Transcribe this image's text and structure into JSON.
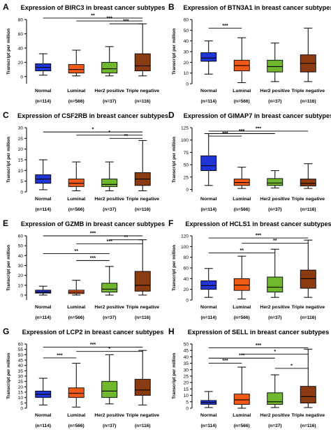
{
  "figure": {
    "y_axis_label": "Transcript per million",
    "groups": [
      "Normal",
      "Luminal",
      "Her2 positive",
      "Triple negative"
    ],
    "group_ns": [
      "(n=114)",
      "(n=566)",
      "(n=37)",
      "(n=116)"
    ],
    "colors": {
      "Normal": "#1f35d6",
      "Luminal": "#f05a16",
      "Her2 positive": "#6fb82e",
      "Triple negative": "#8b3a12"
    }
  },
  "chart_data": [
    {
      "panel": "A",
      "title": "Expression of BIRC3 in breast cancer subtypes",
      "type": "boxplot",
      "ylim": [
        -10,
        80
      ],
      "yticks": [
        0,
        20,
        40,
        60,
        80
      ],
      "boxes": [
        {
          "group": "Normal",
          "min": 2,
          "q1": 8,
          "median": 13,
          "q3": 18,
          "max": 32
        },
        {
          "group": "Luminal",
          "min": 1,
          "q1": 5,
          "median": 10,
          "q3": 17,
          "max": 37
        },
        {
          "group": "Her2 positive",
          "min": 1,
          "q1": 5,
          "median": 11,
          "q3": 20,
          "max": 42
        },
        {
          "group": "Triple negative",
          "min": 1,
          "q1": 8,
          "median": 15,
          "q3": 32,
          "max": 74
        }
      ],
      "significance": [
        {
          "from": "Normal",
          "to": "Triple negative",
          "label": "**",
          "y": 82
        },
        {
          "from": "Luminal",
          "to": "Triple negative",
          "label": "***",
          "y": 78
        },
        {
          "from": "Her2 positive",
          "to": "Triple negative",
          "label": "***",
          "y": 74
        }
      ]
    },
    {
      "panel": "B",
      "title": "Expression of BTN3A1 in breast cancer subtypes",
      "type": "boxplot",
      "ylim": [
        0,
        60
      ],
      "yticks": [
        0,
        10,
        20,
        30,
        40,
        50,
        60
      ],
      "boxes": [
        {
          "group": "Normal",
          "min": 9,
          "q1": 21,
          "median": 24,
          "q3": 29,
          "max": 40
        },
        {
          "group": "Luminal",
          "min": 1,
          "q1": 12,
          "median": 17,
          "q3": 22,
          "max": 43
        },
        {
          "group": "Her2 positive",
          "min": 2,
          "q1": 11,
          "median": 16,
          "q3": 22,
          "max": 38
        },
        {
          "group": "Triple negative",
          "min": 2,
          "q1": 11,
          "median": 19,
          "q3": 27,
          "max": 52
        }
      ],
      "significance": [
        {
          "from": "Normal",
          "to": "Luminal",
          "label": "***",
          "y": 52
        }
      ]
    },
    {
      "panel": "C",
      "title": "Expression of CSF2RB in breast cancer subtypes",
      "type": "boxplot",
      "ylim": [
        0,
        30
      ],
      "yticks": [
        0,
        5,
        10,
        15,
        20,
        25,
        30
      ],
      "boxes": [
        {
          "group": "Normal",
          "min": 1,
          "q1": 4,
          "median": 6,
          "q3": 8,
          "max": 15
        },
        {
          "group": "Luminal",
          "min": 0.5,
          "q1": 2.5,
          "median": 4,
          "q3": 6,
          "max": 14
        },
        {
          "group": "Her2 positive",
          "min": 0.5,
          "q1": 2.5,
          "median": 3.5,
          "q3": 6,
          "max": 14
        },
        {
          "group": "Triple negative",
          "min": 0.5,
          "q1": 3,
          "median": 6,
          "q3": 9,
          "max": 24
        }
      ],
      "significance": [
        {
          "from": "Normal",
          "to": "Triple negative",
          "label": "*",
          "y": 28
        },
        {
          "from": "Luminal",
          "to": "Triple negative",
          "label": "*",
          "y": 26.5
        },
        {
          "from": "Her2 positive",
          "to": "Triple negative",
          "label": "**",
          "y": 25
        }
      ]
    },
    {
      "panel": "D",
      "title": "Expression of GIMAP7 in breast cancer subtypes",
      "type": "boxplot",
      "ylim": [
        -5,
        125
      ],
      "yticks": [
        0,
        25,
        50,
        75,
        100,
        125
      ],
      "boxes": [
        {
          "group": "Normal",
          "min": 8,
          "q1": 38,
          "median": 48,
          "q3": 68,
          "max": 113
        },
        {
          "group": "Luminal",
          "min": 2,
          "q1": 8,
          "median": 14,
          "q3": 21,
          "max": 45
        },
        {
          "group": "Her2 positive",
          "min": 3,
          "q1": 8,
          "median": 13,
          "q3": 22,
          "max": 38
        },
        {
          "group": "Triple negative",
          "min": 2,
          "q1": 7,
          "median": 12,
          "q3": 21,
          "max": 52
        }
      ],
      "significance": [
        {
          "from": "Normal",
          "to": "Triple negative",
          "label": "***",
          "y": 118
        },
        {
          "from": "Normal",
          "to": "Her2 positive",
          "label": "***",
          "y": 113
        },
        {
          "from": "Normal",
          "to": "Luminal",
          "label": "***",
          "y": 108
        }
      ]
    },
    {
      "panel": "E",
      "title": "Expression of GZMB in breast cancer subtypes",
      "type": "boxplot",
      "ylim": [
        -5,
        60
      ],
      "yticks": [
        0,
        10,
        20,
        30,
        40,
        50,
        60
      ],
      "boxes": [
        {
          "group": "Normal",
          "min": 0,
          "q1": 2,
          "median": 3,
          "q3": 5,
          "max": 9
        },
        {
          "group": "Luminal",
          "min": 0,
          "q1": 1.5,
          "median": 3,
          "q3": 5,
          "max": 15
        },
        {
          "group": "Her2 positive",
          "min": 0,
          "q1": 3,
          "median": 6,
          "q3": 12,
          "max": 29
        },
        {
          "group": "Triple negative",
          "min": 0,
          "q1": 4,
          "median": 10,
          "q3": 24,
          "max": 56
        }
      ],
      "significance": [
        {
          "from": "Normal",
          "to": "Triple negative",
          "label": "***",
          "y": 60
        },
        {
          "from": "Her2 positive",
          "to": "Triple negative",
          "label": "**",
          "y": 56
        },
        {
          "from": "Luminal",
          "to": "Triple negative",
          "label": "***",
          "y": 52
        },
        {
          "from": "Normal",
          "to": "Her2 positive",
          "label": "**",
          "y": 42
        },
        {
          "from": "Luminal",
          "to": "Her2 positive",
          "label": "***",
          "y": 35
        }
      ]
    },
    {
      "panel": "F",
      "title": "Expression of HCLS1 in breast cancer subtypes",
      "type": "boxplot",
      "ylim": [
        0,
        120
      ],
      "yticks": [
        0,
        20,
        40,
        60,
        80,
        100,
        120
      ],
      "boxes": [
        {
          "group": "Normal",
          "min": 5,
          "q1": 20,
          "median": 27,
          "q3": 36,
          "max": 59
        },
        {
          "group": "Luminal",
          "min": 2,
          "q1": 18,
          "median": 28,
          "q3": 40,
          "max": 82
        },
        {
          "group": "Her2 positive",
          "min": 5,
          "q1": 15,
          "median": 24,
          "q3": 43,
          "max": 95
        },
        {
          "group": "Triple negative",
          "min": 5,
          "q1": 22,
          "median": 40,
          "q3": 56,
          "max": 112
        }
      ],
      "significance": [
        {
          "from": "Normal",
          "to": "Triple negative",
          "label": "***",
          "y": 116
        },
        {
          "from": "Luminal",
          "to": "Triple negative",
          "label": "**",
          "y": 106
        },
        {
          "from": "Normal",
          "to": "Her2 positive",
          "label": "**",
          "y": 88
        }
      ]
    },
    {
      "panel": "G",
      "title": "Expression of LCP2 in breast cancer subtypes",
      "type": "boxplot",
      "ylim": [
        0,
        60
      ],
      "yticks": [
        0,
        5,
        10,
        15,
        20,
        25,
        30,
        35,
        40,
        45,
        50,
        55,
        60
      ],
      "boxes": [
        {
          "group": "Normal",
          "min": 3,
          "q1": 10,
          "median": 13,
          "q3": 16,
          "max": 28
        },
        {
          "group": "Luminal",
          "min": 1,
          "q1": 10,
          "median": 14,
          "q3": 19,
          "max": 42
        },
        {
          "group": "Her2 positive",
          "min": 4,
          "q1": 10,
          "median": 16,
          "q3": 25,
          "max": 50
        },
        {
          "group": "Triple negative",
          "min": 3,
          "q1": 12,
          "median": 17,
          "q3": 27,
          "max": 54
        }
      ],
      "significance": [
        {
          "from": "Normal",
          "to": "Triple negative",
          "label": "***",
          "y": 57
        },
        {
          "from": "Luminal",
          "to": "Triple negative",
          "label": "*",
          "y": 53
        },
        {
          "from": "Normal",
          "to": "Luminal",
          "label": "***",
          "y": 47
        }
      ]
    },
    {
      "panel": "H",
      "title": "Expression of SELL in breast cancer subtypes",
      "type": "boxplot",
      "ylim": [
        0,
        50
      ],
      "yticks": [
        0,
        5,
        10,
        15,
        20,
        25,
        30,
        35,
        40,
        45,
        50
      ],
      "boxes": [
        {
          "group": "Normal",
          "min": 0.5,
          "q1": 3,
          "median": 4.5,
          "q3": 6,
          "max": 13
        },
        {
          "group": "Luminal",
          "min": 0,
          "q1": 3,
          "median": 6.5,
          "q3": 11,
          "max": 32
        },
        {
          "group": "Her2 positive",
          "min": 0.5,
          "q1": 3,
          "median": 5,
          "q3": 12,
          "max": 26
        },
        {
          "group": "Triple negative",
          "min": 0.5,
          "q1": 4,
          "median": 9,
          "q3": 17,
          "max": 46
        }
      ],
      "significance": [
        {
          "from": "Normal",
          "to": "Triple negative",
          "label": "***",
          "y": 47
        },
        {
          "from": "Luminal",
          "to": "Triple negative",
          "label": "*",
          "y": 42
        },
        {
          "from": "Normal",
          "to": "Her2 positive",
          "label": "***",
          "y": 39
        },
        {
          "from": "Normal",
          "to": "Luminal",
          "label": "***",
          "y": 35
        },
        {
          "from": "Her2 positive",
          "to": "Triple negative",
          "label": "*",
          "y": 31
        }
      ]
    }
  ]
}
